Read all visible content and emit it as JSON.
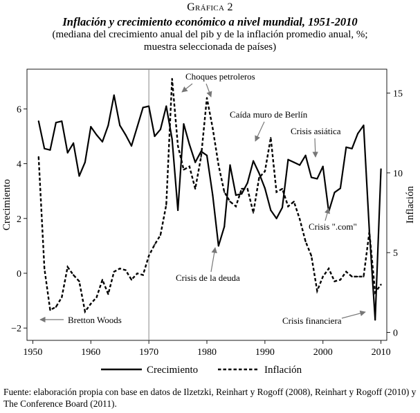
{
  "header": {
    "label": "Gráfica 2",
    "title": "Inflación y crecimiento económico a nivel mundial, 1951-2010",
    "subtitle_line1": "(mediana del crecimiento anual del pib y de la inflación promedio anual, %;",
    "subtitle_line2": "muestra seleccionada de países)"
  },
  "chart_data": {
    "type": "line",
    "x": [
      1951,
      1952,
      1953,
      1954,
      1955,
      1956,
      1957,
      1958,
      1959,
      1960,
      1961,
      1962,
      1963,
      1964,
      1965,
      1966,
      1967,
      1968,
      1969,
      1970,
      1971,
      1972,
      1973,
      1974,
      1975,
      1976,
      1977,
      1978,
      1979,
      1980,
      1981,
      1982,
      1983,
      1984,
      1985,
      1986,
      1987,
      1988,
      1989,
      1990,
      1991,
      1992,
      1993,
      1994,
      1995,
      1996,
      1997,
      1998,
      1999,
      2000,
      2001,
      2002,
      2003,
      2004,
      2005,
      2006,
      2007,
      2008,
      2009,
      2010
    ],
    "series": [
      {
        "name": "Crecimiento",
        "axis": "left",
        "style": "solid",
        "values": [
          5.55,
          4.55,
          4.5,
          5.5,
          5.55,
          4.4,
          4.75,
          3.55,
          4.05,
          5.35,
          5.05,
          4.8,
          5.4,
          6.5,
          5.4,
          5.05,
          4.65,
          5.35,
          6.05,
          6.1,
          5.0,
          5.25,
          6.1,
          4.9,
          2.3,
          5.45,
          4.7,
          4.05,
          4.45,
          4.3,
          2.85,
          1.0,
          1.7,
          3.95,
          2.85,
          2.9,
          3.3,
          4.1,
          3.65,
          3.1,
          2.3,
          2.0,
          2.4,
          4.15,
          4.05,
          3.95,
          4.3,
          3.5,
          3.45,
          3.9,
          2.25,
          2.95,
          3.1,
          4.6,
          4.55,
          5.1,
          5.4,
          1.55,
          -1.7,
          3.8
        ]
      },
      {
        "name": "Inflación",
        "axis": "right",
        "style": "dashed",
        "values": [
          11.0,
          4.0,
          1.4,
          1.6,
          2.2,
          4.1,
          3.6,
          3.2,
          1.3,
          1.8,
          2.2,
          3.3,
          2.4,
          3.8,
          4.0,
          3.9,
          3.3,
          3.7,
          3.6,
          4.8,
          5.5,
          6.1,
          8.0,
          15.9,
          11.7,
          10.2,
          10.4,
          9.0,
          11.0,
          14.7,
          12.8,
          10.5,
          8.8,
          8.2,
          7.9,
          9.0,
          9.0,
          7.5,
          9.7,
          10.1,
          12.2,
          8.8,
          9.0,
          7.9,
          8.2,
          7.1,
          5.7,
          4.8,
          2.6,
          3.5,
          4.0,
          3.2,
          3.3,
          3.8,
          3.5,
          3.5,
          3.5,
          6.3,
          2.5,
          3.0
        ]
      }
    ],
    "xlim": [
      1949,
      2011
    ],
    "xticks": [
      1950,
      1960,
      1970,
      1980,
      1990,
      2000,
      2010
    ],
    "ylim_left": [
      -2.45,
      7.45
    ],
    "yticks_left": [
      -2,
      0,
      2,
      4,
      6
    ],
    "ylim_right": [
      -0.5,
      16.5
    ],
    "yticks_right": [
      0,
      5,
      10,
      15
    ],
    "ylabel_left": "Crecimiento",
    "ylabel_right": "Inflación",
    "vline_year": 1970,
    "annotations": [
      {
        "text": "Choques petroleros",
        "x": 1975.5,
        "y_right": 15.0
      },
      {
        "text": "Caída muro de Berlín",
        "x": 1986.3,
        "y_right": 13.4
      },
      {
        "text": "Crisis asiática",
        "x": 1998.0,
        "y_right": 12.3
      },
      {
        "text": "Crisis \".com\"",
        "x": 2000.8,
        "y_right": 6.0
      },
      {
        "text": "Crisis de la deuda",
        "x": 1981.0,
        "y_right": 3.1
      },
      {
        "text": "Bretton Woods",
        "x": 1951.4,
        "y_right": 0.3
      },
      {
        "text": "Crisis financiera",
        "x": 2007.0,
        "y_right": 0.3
      }
    ],
    "legend": [
      {
        "label": "Crecimiento",
        "style": "solid"
      },
      {
        "label": "Inflación",
        "style": "dashed"
      }
    ],
    "legend_position": "bottom"
  },
  "source": "Fuente: elaboración propia con base en datos de Ilzetzki, Reinhart y Rogoff (2008), Reinhart y Rogoff (2010) y The Conference Board (2011)."
}
